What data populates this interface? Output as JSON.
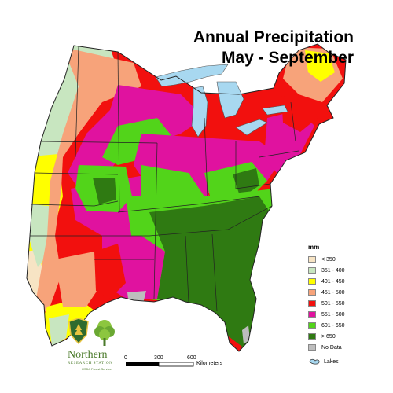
{
  "map": {
    "title_line1": "Annual Precipitation",
    "title_line2": "May - September"
  },
  "legend": {
    "unit": "mm",
    "items": [
      {
        "label": "< 350",
        "color": "#f7e4c4"
      },
      {
        "label": "351 - 400",
        "color": "#c8e6c0"
      },
      {
        "label": "401 - 450",
        "color": "#ffff00"
      },
      {
        "label": "451 - 500",
        "color": "#f7a37a"
      },
      {
        "label": "501 - 550",
        "color": "#f2100e"
      },
      {
        "label": "551 - 600",
        "color": "#e0129f"
      },
      {
        "label": "601 - 650",
        "color": "#52d41a"
      },
      {
        "label": "> 650",
        "color": "#2f7a12"
      },
      {
        "label": "No Data",
        "color": "#bdbdbd"
      }
    ],
    "lakes_label": "Lakes",
    "lakes_color": "#a8d8f0"
  },
  "scale_bar": {
    "ticks": [
      "0",
      "300",
      "600"
    ],
    "unit": "Kilometers"
  },
  "organization": {
    "name": "Northern",
    "subtitle": "RESEARCH STATION",
    "agency": "USDA Forest Service",
    "logo_left": "usfs-shield-icon",
    "logo_right": "tree-icon"
  }
}
